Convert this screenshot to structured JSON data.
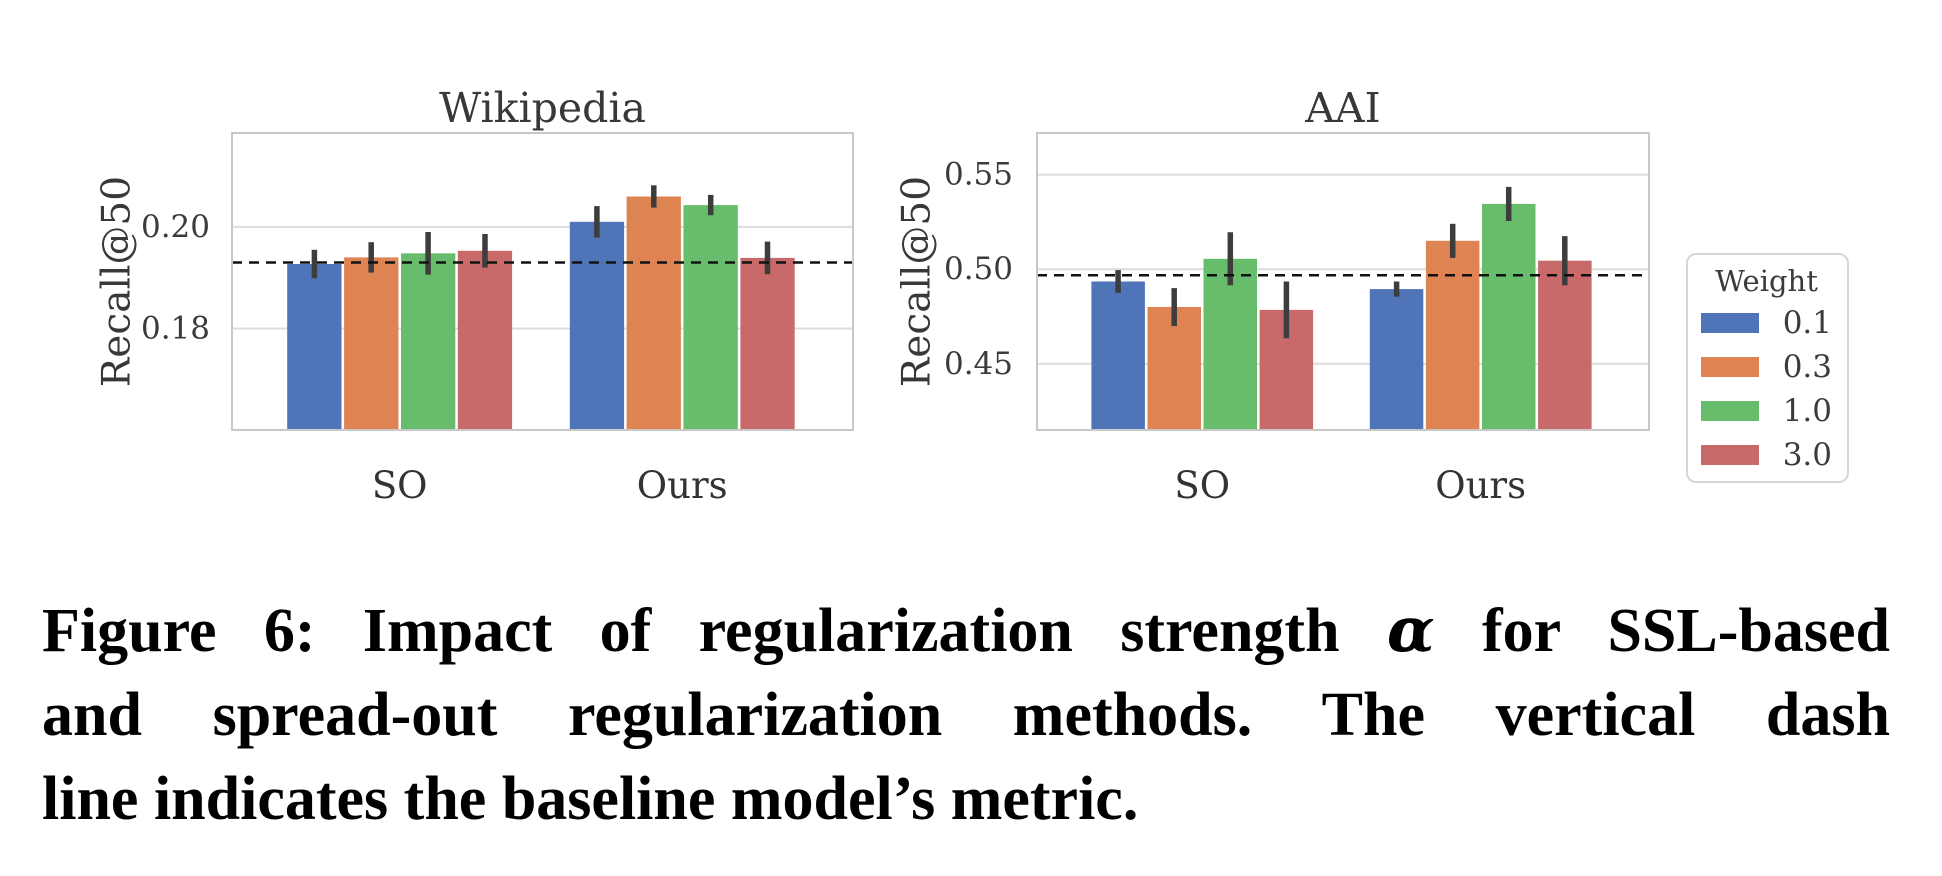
{
  "page": {
    "background": "#ffffff"
  },
  "chart_data": [
    {
      "type": "bar",
      "title": "Wikipedia",
      "ylabel": "Recall@50",
      "xlabel": "",
      "categories": [
        "SO",
        "Ours"
      ],
      "series": [
        {
          "name": "0.1",
          "color": "#4f74b8",
          "values": [
            0.1927,
            0.201
          ],
          "errors": [
            0.0028,
            0.0031
          ]
        },
        {
          "name": "0.3",
          "color": "#dd8452",
          "values": [
            0.194,
            0.206
          ],
          "errors": [
            0.003,
            0.0022
          ]
        },
        {
          "name": "1.0",
          "color": "#68bd6c",
          "values": [
            0.1948,
            0.2043
          ],
          "errors": [
            0.0042,
            0.002
          ]
        },
        {
          "name": "3.0",
          "color": "#c86a6a",
          "values": [
            0.1953,
            0.1939
          ],
          "errors": [
            0.0033,
            0.0032
          ]
        }
      ],
      "baseline": 0.193,
      "ylim": [
        0.16,
        0.2185
      ],
      "yticks": [
        0.2,
        0.18
      ],
      "ytick_labels": [
        "0.20",
        "0.18"
      ],
      "grid": "horizontal",
      "legend_position": "outside-right"
    },
    {
      "type": "bar",
      "title": "AAI",
      "ylabel": "Recall@50",
      "xlabel": "",
      "categories": [
        "SO",
        "Ours"
      ],
      "series": [
        {
          "name": "0.1",
          "color": "#4f74b8",
          "values": [
            0.4935,
            0.4895
          ],
          "errors": [
            0.006,
            0.004
          ]
        },
        {
          "name": "0.3",
          "color": "#dd8452",
          "values": [
            0.48,
            0.515
          ],
          "errors": [
            0.01,
            0.009
          ]
        },
        {
          "name": "1.0",
          "color": "#68bd6c",
          "values": [
            0.5055,
            0.5345
          ],
          "errors": [
            0.014,
            0.009
          ]
        },
        {
          "name": "3.0",
          "color": "#c86a6a",
          "values": [
            0.4785,
            0.5045
          ],
          "errors": [
            0.015,
            0.013
          ]
        }
      ],
      "baseline": 0.4968,
      "ylim": [
        0.415,
        0.572
      ],
      "yticks": [
        0.55,
        0.5,
        0.45
      ],
      "ytick_labels": [
        "0.55",
        "0.50",
        "0.45"
      ],
      "grid": "horizontal",
      "legend_position": "outside-right"
    }
  ],
  "legend": {
    "title": "Weight",
    "entries": [
      {
        "label": "0.1",
        "color": "#4f74b8"
      },
      {
        "label": "0.3",
        "color": "#dd8452"
      },
      {
        "label": "1.0",
        "color": "#68bd6c"
      },
      {
        "label": "3.0",
        "color": "#c86a6a"
      }
    ]
  },
  "caption": {
    "line1_pre": "Figure 6: Impact of regularization strength",
    "line1_alpha": "α",
    "line1_post": "for SSL-based",
    "line2": "and spread-out regularization methods. The vertical dash",
    "line3": "line indicates the baseline model’s metric."
  },
  "style": {
    "errorbar_color": "#3d3d3d",
    "baseline_color": "#111111",
    "grid_color": "#dcdcdc",
    "plot_border_color": "#c8c8c8",
    "text_color": "#3b3b3b",
    "title_color": "#383838"
  }
}
